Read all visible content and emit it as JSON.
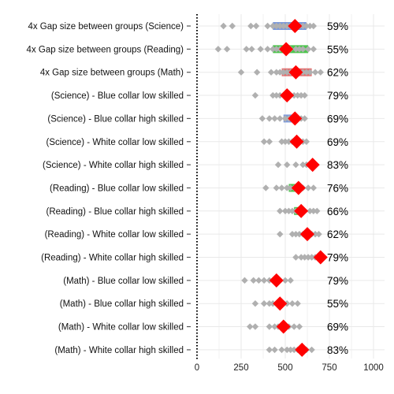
{
  "chart_data": {
    "type": "scatter",
    "title": "",
    "xlabel": "",
    "ylabel": "",
    "xlim": [
      0,
      1000
    ],
    "x_ticks": [
      "0",
      "250",
      "500",
      "750",
      "1000"
    ],
    "grid": true,
    "colors": {
      "points": "#b0b0b0",
      "highlight": "#ff0000",
      "band_blue": "#6f8fd6",
      "band_green": "#3bbf3b",
      "band_red": "#e06060",
      "grid": "#e9e9e9",
      "axis": "#000000"
    },
    "rows": [
      {
        "label": "4x Gap size between groups (Science)",
        "highlight": 555,
        "pct": "59%",
        "band": {
          "from": 430,
          "to": 620,
          "color": "band_blue"
        },
        "points": [
          150,
          200,
          305,
          335,
          400,
          430,
          450,
          470,
          490,
          510,
          530,
          560,
          580,
          600,
          620,
          640,
          660
        ]
      },
      {
        "label": "4x Gap size between groups (Reading)",
        "highlight": 505,
        "pct": "55%",
        "band": {
          "from": 430,
          "to": 630,
          "color": "band_green"
        },
        "points": [
          120,
          170,
          280,
          310,
          360,
          400,
          430,
          450,
          470,
          490,
          530,
          560,
          580,
          600,
          630,
          660
        ]
      },
      {
        "label": "4x Gap size between groups (Math)",
        "highlight": 560,
        "pct": "62%",
        "band": {
          "from": 480,
          "to": 650,
          "color": "band_red"
        },
        "points": [
          250,
          340,
          420,
          450,
          470,
          490,
          510,
          530,
          580,
          600,
          620,
          640,
          670,
          700
        ]
      },
      {
        "label": "(Science) - Blue collar low skilled",
        "highlight": 510,
        "pct": "79%",
        "points": [
          330,
          430,
          450,
          470,
          490,
          530,
          550,
          570,
          590,
          610
        ]
      },
      {
        "label": "(Science) - Blue collar high skilled",
        "highlight": 555,
        "pct": "69%",
        "band": {
          "from": 490,
          "to": 560,
          "color": "band_blue"
        },
        "points": [
          370,
          410,
          440,
          470,
          500,
          520,
          540,
          570,
          590,
          610
        ]
      },
      {
        "label": "(Science) -  White collar low skilled",
        "highlight": 565,
        "pct": "69%",
        "points": [
          380,
          410,
          480,
          500,
          520,
          540,
          580,
          600,
          620
        ]
      },
      {
        "label": "(Science) -  White collar high skilled",
        "highlight": 655,
        "pct": "83%",
        "points": [
          460,
          510,
          560,
          600,
          620,
          640
        ]
      },
      {
        "label": "(Reading) - Blue collar low skilled",
        "highlight": 575,
        "pct": "76%",
        "band": {
          "from": 520,
          "to": 570,
          "color": "band_green"
        },
        "points": [
          390,
          450,
          480,
          510,
          530,
          550,
          600,
          630,
          660
        ]
      },
      {
        "label": "(Reading) - Blue collar high skilled",
        "highlight": 590,
        "pct": "66%",
        "band": {
          "from": 550,
          "to": 590,
          "color": "band_green"
        },
        "points": [
          470,
          500,
          520,
          540,
          560,
          610,
          640,
          660,
          680
        ]
      },
      {
        "label": "(Reading) -  White collar low skilled",
        "highlight": 625,
        "pct": "62%",
        "points": [
          470,
          540,
          560,
          580,
          600,
          650,
          670,
          690
        ]
      },
      {
        "label": "(Reading) -  White collar high skilled",
        "highlight": 700,
        "pct": "79%",
        "points": [
          560,
          590,
          610,
          630,
          650,
          670,
          690
        ]
      },
      {
        "label": "(Math) - Blue collar low skilled",
        "highlight": 450,
        "pct": "79%",
        "points": [
          270,
          320,
          350,
          380,
          410,
          430,
          470,
          500,
          530
        ]
      },
      {
        "label": "(Math) - Blue collar high skilled",
        "highlight": 470,
        "pct": "55%",
        "points": [
          330,
          380,
          410,
          430,
          450,
          490,
          510,
          540,
          570
        ]
      },
      {
        "label": "(Math) -  White collar low skilled",
        "highlight": 490,
        "pct": "69%",
        "points": [
          300,
          330,
          410,
          440,
          460,
          520,
          550,
          580
        ]
      },
      {
        "label": "(Math) -  White collar high skilled",
        "highlight": 595,
        "pct": "83%",
        "points": [
          410,
          440,
          480,
          510,
          530,
          550,
          570,
          620,
          650
        ]
      }
    ]
  }
}
